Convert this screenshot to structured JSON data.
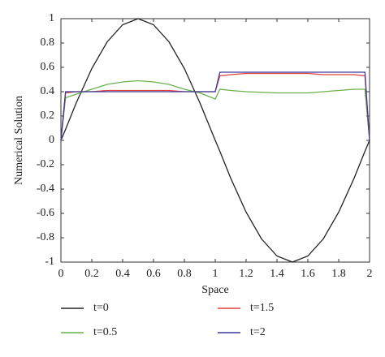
{
  "chart_data": {
    "type": "line",
    "x_label": "Space",
    "y_label": "Numerical Solution",
    "x": [
      0,
      0.03,
      0.1,
      0.2,
      0.3,
      0.4,
      0.5,
      0.6,
      0.7,
      0.8,
      0.9,
      1.0,
      1.03,
      1.1,
      1.2,
      1.3,
      1.4,
      1.5,
      1.6,
      1.7,
      1.8,
      1.9,
      1.97,
      2
    ],
    "series": [
      {
        "name": "t=0",
        "color": "#222222",
        "values": [
          0,
          0.09,
          0.31,
          0.59,
          0.81,
          0.95,
          1,
          0.95,
          0.81,
          0.59,
          0.31,
          0,
          -0.09,
          -0.31,
          -0.59,
          -0.81,
          -0.95,
          -1,
          -0.95,
          -0.81,
          -0.59,
          -0.31,
          -0.09,
          0
        ]
      },
      {
        "name": "t=0.5",
        "color": "#6ab04c",
        "values": [
          0,
          0.35,
          0.38,
          0.42,
          0.46,
          0.48,
          0.49,
          0.48,
          0.46,
          0.42,
          0.39,
          0.34,
          0.42,
          0.41,
          0.4,
          0.395,
          0.39,
          0.39,
          0.39,
          0.4,
          0.41,
          0.42,
          0.42,
          0
        ]
      },
      {
        "name": "t=1.5",
        "color": "#e0403a",
        "values": [
          0,
          0.39,
          0.4,
          0.4,
          0.41,
          0.41,
          0.41,
          0.41,
          0.41,
          0.4,
          0.4,
          0.4,
          0.53,
          0.54,
          0.55,
          0.55,
          0.55,
          0.55,
          0.55,
          0.54,
          0.54,
          0.54,
          0.53,
          0
        ]
      },
      {
        "name": "t=2",
        "color": "#3b3b9e",
        "values": [
          0,
          0.4,
          0.4,
          0.4,
          0.4,
          0.4,
          0.4,
          0.4,
          0.4,
          0.4,
          0.4,
          0.4,
          0.56,
          0.56,
          0.56,
          0.56,
          0.56,
          0.56,
          0.56,
          0.56,
          0.56,
          0.56,
          0.56,
          0
        ]
      }
    ],
    "xlim": [
      0,
      2
    ],
    "xticks": [
      0,
      0.2,
      0.4,
      0.6,
      0.8,
      1,
      1.2,
      1.4,
      1.6,
      1.8,
      2
    ],
    "ylim": [
      -1,
      1
    ],
    "yticks": [
      -1,
      -0.8,
      -0.6,
      -0.4,
      -0.2,
      0,
      0.2,
      0.4,
      0.6,
      0.8,
      1
    ],
    "grid": false
  }
}
